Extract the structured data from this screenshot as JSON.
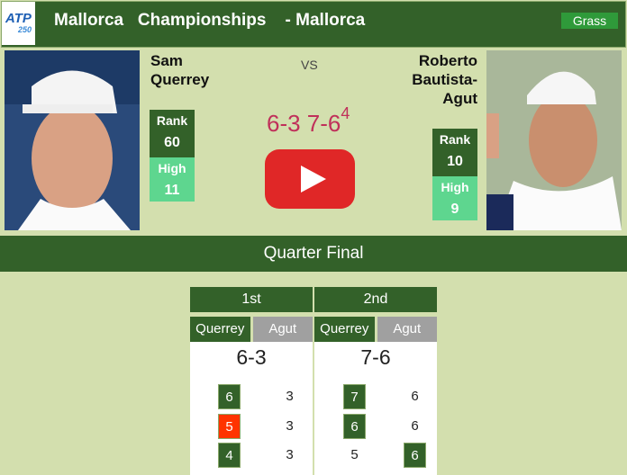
{
  "header": {
    "logo_text": "ATP",
    "logo_tier": "250",
    "title": "Mallorca   Championships    - Mallorca",
    "surface": "Grass"
  },
  "player1": {
    "name_line1": "Sam",
    "name_line2": "Querrey",
    "rank_label": "Rank",
    "rank": "60",
    "high_label": "High",
    "high": "11"
  },
  "player2": {
    "name_line1": "Roberto",
    "name_line2": "Bautista-",
    "name_line3": "Agut",
    "rank_label": "Rank",
    "rank": "10",
    "high_label": "High",
    "high": "9"
  },
  "vs": "VS",
  "score": {
    "main": "6-3 7-6",
    "tiebreak": "4"
  },
  "round": "Quarter Final",
  "sets": [
    {
      "label": "1st",
      "p1": "Querrey",
      "p2": "Agut",
      "result": "6-3",
      "games": [
        {
          "p1": "6",
          "p2": "3",
          "winner": "p1",
          "p1_break": false
        },
        {
          "p1": "5",
          "p2": "3",
          "winner": "p1",
          "p1_break": true
        },
        {
          "p1": "4",
          "p2": "3",
          "winner": "p1",
          "p1_break": false
        }
      ]
    },
    {
      "label": "2nd",
      "p1": "Querrey",
      "p2": "Agut",
      "result": "7-6",
      "games": [
        {
          "p1": "7",
          "p2": "6",
          "winner": "p1"
        },
        {
          "p1": "6",
          "p2": "6",
          "winner": "p1"
        },
        {
          "p1": "5",
          "p2": "6",
          "winner": "p2"
        }
      ]
    }
  ],
  "colors": {
    "dark_green": "#336129",
    "light_green": "#5ed68f",
    "background": "#d3dfae",
    "score_red": "#c0305a",
    "play_red": "#e02727",
    "break_red": "#ff3300",
    "loser_gray": "#a0a0a0"
  }
}
